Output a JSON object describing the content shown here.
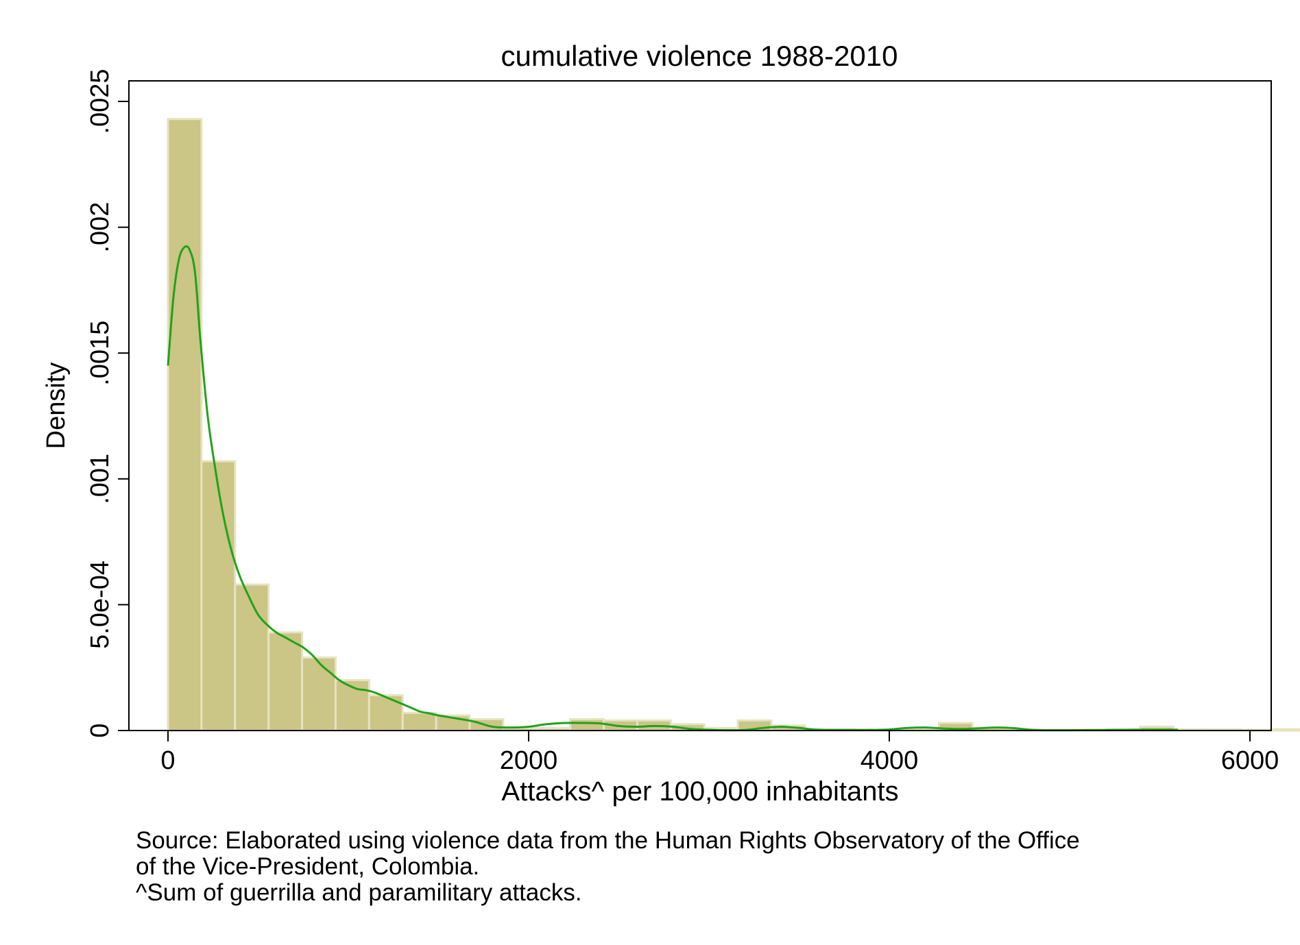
{
  "chart_data": {
    "type": "bar",
    "title": "cumulative violence 1988-2010",
    "xlabel": "Attacks^ per 100,000 inhabitants",
    "ylabel": "Density",
    "xlim": [
      -100,
      6000
    ],
    "ylim": [
      0,
      0.0026
    ],
    "x_ticks": [
      0,
      2000,
      4000,
      6000
    ],
    "x_tick_labels": [
      "0",
      "2000",
      "4000",
      "6000"
    ],
    "y_ticks": [
      0,
      0.0005,
      0.001,
      0.0015,
      0.002,
      0.0025
    ],
    "y_tick_labels": [
      "0",
      "5.0e-04",
      ".001",
      ".0015",
      ".002",
      ".0025"
    ],
    "grid": false,
    "histogram": {
      "bin_start": 0,
      "bin_width": 185.9,
      "values": [
        0.00243,
        0.00107,
        0.00058,
        0.00039,
        0.00029,
        0.0002,
        0.00014,
        7e-05,
        6e-05,
        4.5e-05,
        1e-05,
        1e-05,
        4.5e-05,
        4e-05,
        4e-05,
        2.5e-05,
        1e-05,
        4e-05,
        2e-05,
        5e-06,
        5e-06,
        3e-06,
        3e-06,
        3e-05,
        1e-05,
        5e-06,
        3e-06,
        3e-06,
        5e-06,
        1.5e-05,
        5e-06,
        5e-06,
        3e-06,
        5e-06,
        1e-05,
        3e-06,
        3e-06,
        3e-06,
        3e-06,
        3e-06,
        3e-06,
        3e-06,
        1e-05,
        1e-05,
        5e-06
      ]
    },
    "density_curve": {
      "x": [
        0,
        30,
        60,
        90,
        120,
        150,
        180,
        220,
        260,
        300,
        350,
        400,
        450,
        500,
        550,
        600,
        650,
        700,
        750,
        800,
        850,
        900,
        950,
        1000,
        1050,
        1100,
        1150,
        1200,
        1250,
        1300,
        1350,
        1400,
        1450,
        1500,
        1600,
        1700,
        1800,
        1900,
        2000,
        2100,
        2200,
        2300,
        2400,
        2500,
        2600,
        2700,
        2800,
        2900,
        3000,
        3100,
        3200,
        3300,
        3400,
        3500,
        3600,
        3700,
        3800,
        3900,
        4000,
        4100,
        4200,
        4300,
        4400,
        4500,
        4600,
        4700,
        4800,
        4900,
        5000,
        5200,
        5400,
        5600
      ],
      "y": [
        0.00145,
        0.00172,
        0.00187,
        0.00192,
        0.00191,
        0.00182,
        0.00155,
        0.00125,
        0.00105,
        0.00088,
        0.00072,
        0.00061,
        0.00053,
        0.00046,
        0.00042,
        0.00039,
        0.00037,
        0.00035,
        0.00033,
        0.0003,
        0.00026,
        0.00023,
        0.0002,
        0.00018,
        0.000165,
        0.00016,
        0.00015,
        0.000135,
        0.00012,
        0.000105,
        9e-05,
        7.5e-05,
        6.8e-05,
        6e-05,
        4.8e-05,
        3.5e-05,
        1.5e-05,
        1.2e-05,
        1.5e-05,
        2.5e-05,
        3e-05,
        3e-05,
        2.8e-05,
        1.8e-05,
        1.5e-05,
        1.8e-05,
        1.5e-05,
        6e-06,
        3e-06,
        1e-06,
        2e-06,
        1e-05,
        1.5e-05,
        1e-05,
        3e-06,
        2e-06,
        2e-06,
        2e-06,
        4e-06,
        1e-05,
        1.2e-05,
        8e-06,
        6e-06,
        9e-06,
        1.2e-05,
        9e-06,
        2e-06,
        1e-06,
        1e-06,
        2e-06,
        3e-06,
        3e-06
      ]
    },
    "colors": {
      "bar_fill": "#cbc586",
      "bar_stroke": "#e6e3c0",
      "curve": "#20a21a",
      "axis": "#000000",
      "background": "#ffffff"
    }
  },
  "notes": [
    "Source: Elaborated using violence data from the Human Rights Observatory of the Office",
    "of the Vice-President, Colombia.",
    "^Sum of guerrilla and paramilitary attacks."
  ]
}
